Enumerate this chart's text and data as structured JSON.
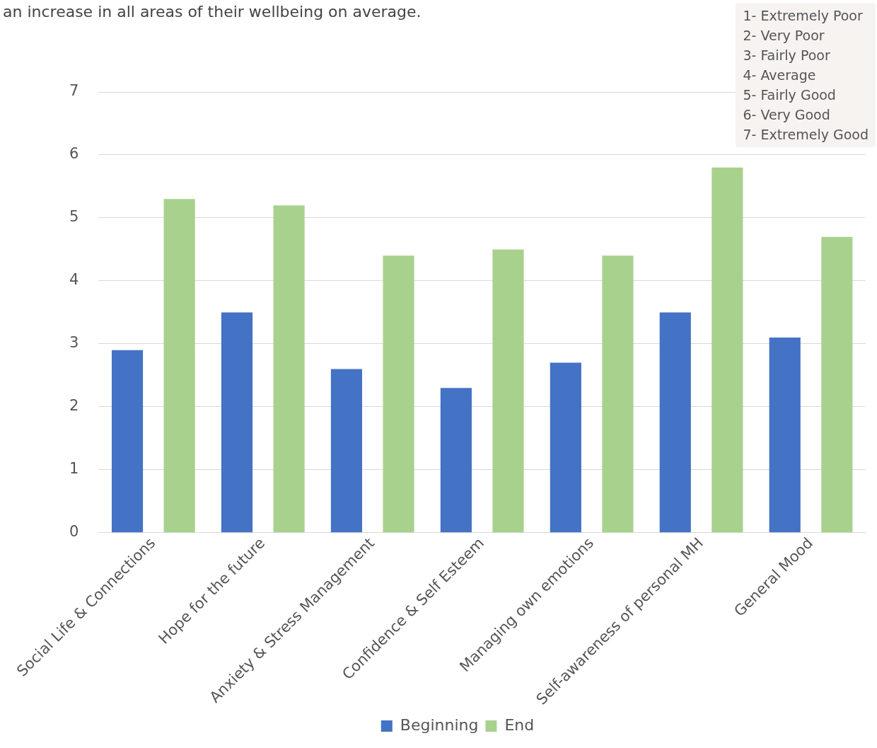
{
  "chart_data": {
    "type": "bar",
    "subtitle": "an increase in all areas of their wellbeing on average.",
    "categories": [
      "Social Life & Connections",
      "Hope for the future",
      "Anxiety & Stress Management",
      "Confidence & Self Esteem",
      "Managing own emotions",
      "Self-awareness of personal MH",
      "General Mood"
    ],
    "series": [
      {
        "name": "Beginning",
        "color": "#4472c4",
        "values": [
          2.9,
          3.5,
          2.6,
          2.3,
          2.7,
          3.5,
          3.1
        ]
      },
      {
        "name": "End",
        "color": "#a9d18e",
        "values": [
          5.3,
          5.2,
          4.4,
          4.5,
          4.4,
          5.8,
          4.7
        ]
      }
    ],
    "ylim": [
      0,
      7
    ],
    "yticks": [
      0,
      1,
      2,
      3,
      4,
      5,
      6,
      7
    ],
    "grid": "y",
    "legend": "bottom",
    "annotations": [
      "1- Extremely Poor",
      "2- Very Poor",
      "3- Fairly Poor",
      "4- Average",
      "5- Fairly Good",
      "6- Very Good",
      "7- Extremely Good"
    ]
  }
}
